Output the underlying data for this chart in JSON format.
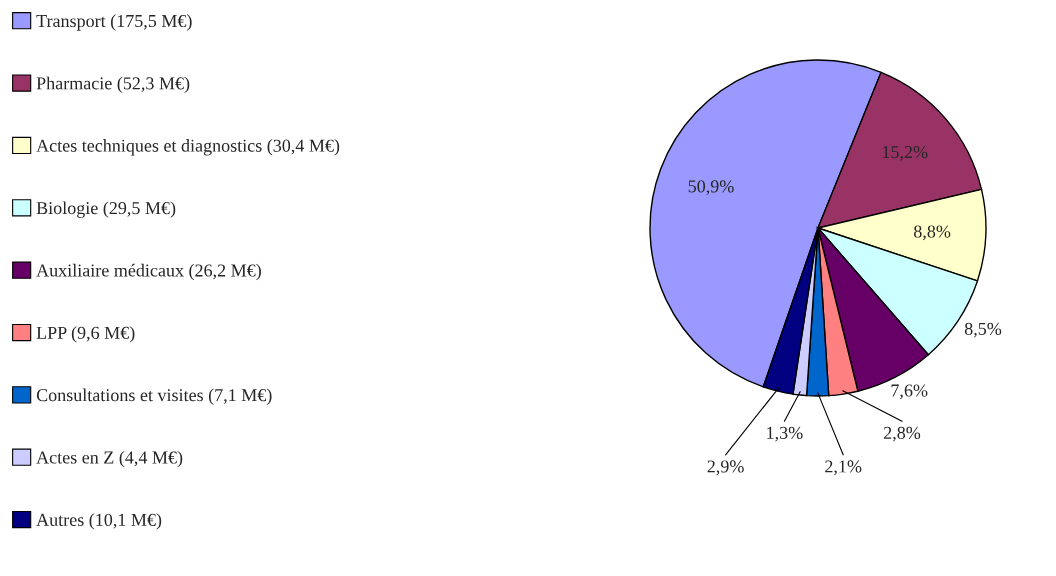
{
  "chart_data": {
    "type": "pie",
    "categories": [
      "Transport (175,5 M€)",
      "Pharmacie (52,3 M€)",
      "Actes techniques et diagnostics (30,4 M€)",
      "Biologie (29,5 M€)",
      "Auxiliaire médicaux (26,2 M€)",
      "LPP (9,6 M€)",
      "Consultations et visites (7,1 M€)",
      "Actes en Z (4,4 M€)",
      "Autres (10,1 M€)"
    ],
    "values": [
      50.9,
      15.2,
      8.8,
      8.5,
      7.6,
      2.8,
      2.1,
      1.3,
      2.9
    ],
    "value_labels": [
      "50,9%",
      "15,2%",
      "8,8%",
      "8,5%",
      "7,6%",
      "2,8%",
      "2,1%",
      "1,3%",
      "2,9%"
    ],
    "colors": [
      "#9999ff",
      "#993366",
      "#ffffcc",
      "#ccffff",
      "#660066",
      "#ff8080",
      "#0066cc",
      "#ccccff",
      "#000080"
    ],
    "legend": "left"
  }
}
